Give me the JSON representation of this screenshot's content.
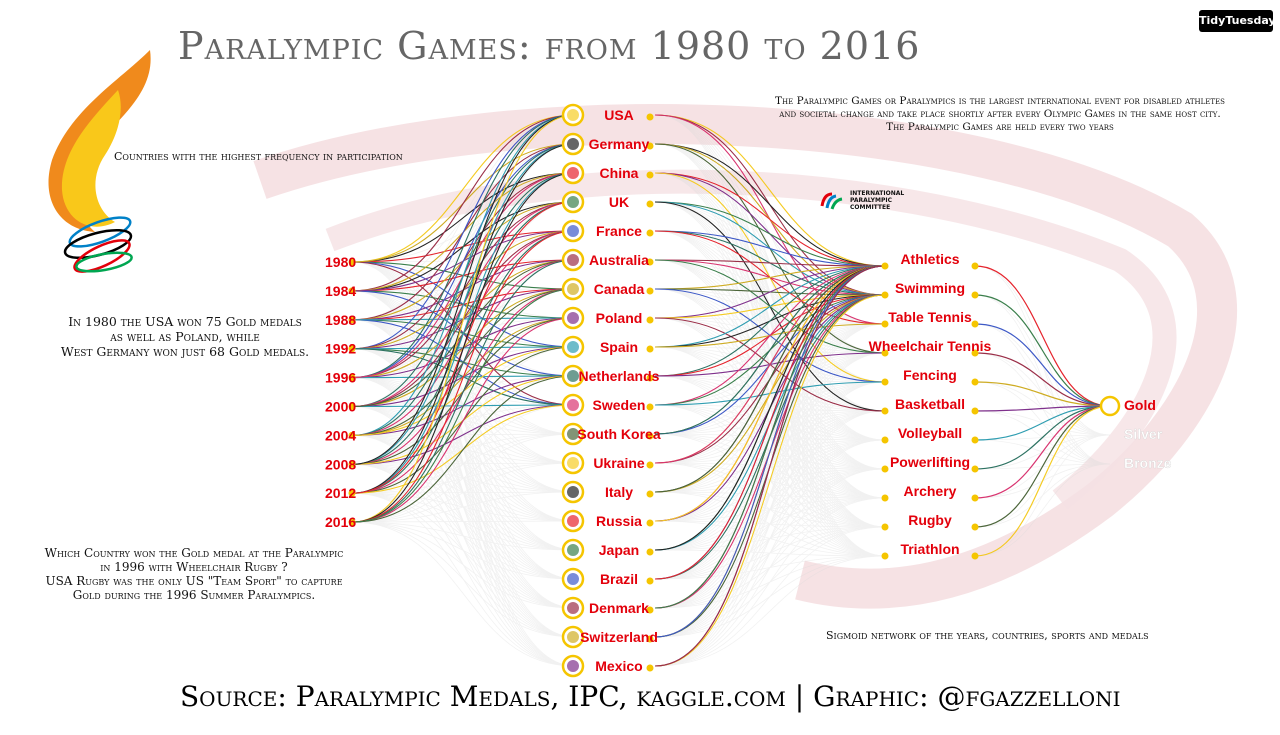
{
  "title": "Paralympic Games: from 1980 to 2016",
  "badge": "TidyTuesday",
  "notes": {
    "intro": [
      "The Paralympic Games or Paralympics is the largest international event for disabled athletes",
      "and societal change and take place shortly after every Olympic Games in the same host city.",
      "The Paralympic Games are held every two years"
    ],
    "countries": "Countries with the highest frequency in participation",
    "usa_1980": [
      "In 1980 the USA won 75 Gold medals",
      "as well as Poland, while",
      "West Germany won just 68 Gold medals."
    ],
    "rugby": [
      "Which Country won the Gold medal at the Paralympic",
      "in 1996 with Wheelchair Rugby ?",
      "USA Rugby was the only US \"Team Sport\" to capture",
      "Gold during the 1996 Summer Paralympics."
    ],
    "sigmoid": "Sigmoid network of the years, countries, sports and medals"
  },
  "ipc_logo": [
    "INTERNATIONAL",
    "PARALYMPIC",
    "COMMITTEE"
  ],
  "source": "Source: Paralympic Medals, IPC, kaggle.com | Graphic: @fgazzelloni",
  "colors": {
    "accent": "#e3000b",
    "node": "#f5c500",
    "background_links": "#d9d9d9"
  },
  "chart_data": {
    "type": "network",
    "years": [
      "1980",
      "1984",
      "1988",
      "1992",
      "1996",
      "2000",
      "2004",
      "2008",
      "2012",
      "2016"
    ],
    "countries": [
      "USA",
      "Germany",
      "China",
      "UK",
      "France",
      "Australia",
      "Canada",
      "Poland",
      "Spain",
      "Netherlands",
      "Sweden",
      "South Korea",
      "Ukraine",
      "Italy",
      "Russia",
      "Japan",
      "Brazil",
      "Denmark",
      "Switzerland",
      "Mexico"
    ],
    "sports": [
      "Athletics",
      "Swimming",
      "Table Tennis",
      "Wheelchair Tennis",
      "Fencing",
      "Basketball",
      "Volleyball",
      "Powerlifting",
      "Archery",
      "Rugby",
      "Triathlon"
    ],
    "medals": [
      "Gold",
      "Silver",
      "Bronze"
    ],
    "highlighted_medal": "Gold"
  }
}
